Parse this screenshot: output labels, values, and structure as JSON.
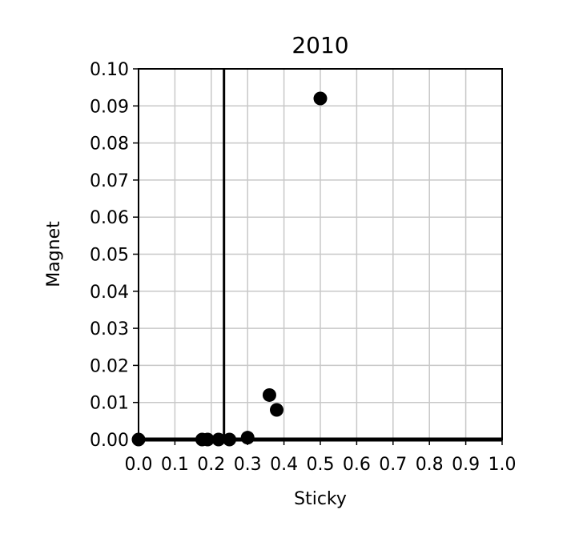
{
  "chart_data": {
    "type": "scatter",
    "title": "2010",
    "xlabel": "Sticky",
    "ylabel": "Magnet",
    "xlim": [
      0.0,
      1.0
    ],
    "ylim": [
      0.0,
      0.1
    ],
    "x_ticks": [
      0.0,
      0.1,
      0.2,
      0.3,
      0.4,
      0.5,
      0.6,
      0.7,
      0.8,
      0.9,
      1.0
    ],
    "y_ticks": [
      0.0,
      0.01,
      0.02,
      0.03,
      0.04,
      0.05,
      0.06,
      0.07,
      0.08,
      0.09,
      0.1
    ],
    "x_tick_labels": [
      "0.0",
      "0.1",
      "0.2",
      "0.3",
      "0.4",
      "0.5",
      "0.6",
      "0.7",
      "0.8",
      "0.9",
      "1.0"
    ],
    "y_tick_labels": [
      "0.00",
      "0.01",
      "0.02",
      "0.03",
      "0.04",
      "0.05",
      "0.06",
      "0.07",
      "0.08",
      "0.09",
      "0.10"
    ],
    "grid": true,
    "vline_x": 0.235,
    "hline_y": 0.0,
    "points": [
      {
        "x": 0.0,
        "y": 0.0
      },
      {
        "x": 0.175,
        "y": 0.0
      },
      {
        "x": 0.19,
        "y": 0.0
      },
      {
        "x": 0.22,
        "y": 0.0
      },
      {
        "x": 0.25,
        "y": 0.0
      },
      {
        "x": 0.3,
        "y": 0.0005
      },
      {
        "x": 0.36,
        "y": 0.012
      },
      {
        "x": 0.38,
        "y": 0.008
      },
      {
        "x": 0.5,
        "y": 0.092
      }
    ],
    "point_color": "#000000",
    "grid_color": "#c8c8c8"
  }
}
